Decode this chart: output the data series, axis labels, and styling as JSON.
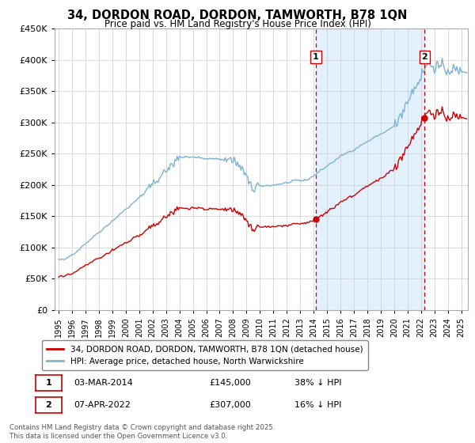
{
  "title": "34, DORDON ROAD, DORDON, TAMWORTH, B78 1QN",
  "subtitle": "Price paid vs. HM Land Registry's House Price Index (HPI)",
  "hpi_label": "HPI: Average price, detached house, North Warwickshire",
  "property_label": "34, DORDON ROAD, DORDON, TAMWORTH, B78 1QN (detached house)",
  "sale1_date": "03-MAR-2014",
  "sale1_price": 145000,
  "sale1_pct": "38% ↓ HPI",
  "sale2_date": "07-APR-2022",
  "sale2_price": 307000,
  "sale2_pct": "16% ↓ HPI",
  "hpi_color": "#7ab3d4",
  "property_color": "#cc0000",
  "vline_color": "#cc0000",
  "shade_color": "#ddeeff",
  "marker_color": "#cc0000",
  "background_color": "#ffffff",
  "footnote": "Contains HM Land Registry data © Crown copyright and database right 2025.\nThis data is licensed under the Open Government Licence v3.0.",
  "ylim": [
    0,
    450000
  ],
  "start_year": 1994.7,
  "end_year": 2025.5,
  "sale1_x": 2014.17,
  "sale2_x": 2022.27
}
